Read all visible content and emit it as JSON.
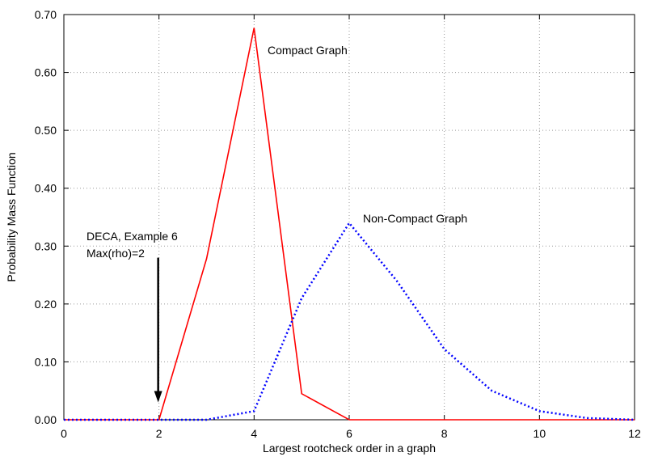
{
  "chart_data": {
    "type": "line",
    "title": "",
    "xlabel": "Largest rootcheck order in a graph",
    "ylabel": "Probability Mass Function",
    "xlim": [
      0,
      12
    ],
    "ylim": [
      0,
      0.7
    ],
    "xticks": [
      0,
      2,
      4,
      6,
      8,
      10,
      12
    ],
    "xtick_labels": [
      "0",
      "2",
      "4",
      "6",
      "8",
      "10",
      "12"
    ],
    "yticks": [
      0,
      0.1,
      0.2,
      0.3,
      0.4,
      0.5,
      0.6,
      0.7
    ],
    "ytick_labels": [
      "0.00",
      "0.10",
      "0.20",
      "0.30",
      "0.40",
      "0.50",
      "0.60",
      "0.70"
    ],
    "grid": true,
    "series": [
      {
        "name": "Compact Graph",
        "color": "#ff0000",
        "style": "solid",
        "x": [
          0,
          1,
          2,
          3,
          4,
          5,
          6,
          7,
          8,
          9,
          10,
          11,
          12
        ],
        "y": [
          0,
          0,
          0,
          0.278,
          0.677,
          0.045,
          0,
          0,
          0,
          0,
          0,
          0,
          0
        ]
      },
      {
        "name": "Non-Compact Graph",
        "color": "#0000ff",
        "style": "dotted",
        "x": [
          0,
          1,
          2,
          3,
          4,
          5,
          6,
          7,
          8,
          9,
          10,
          11,
          12
        ],
        "y": [
          0,
          0,
          0,
          0,
          0.015,
          0.21,
          0.34,
          0.24,
          0.122,
          0.05,
          0.015,
          0.003,
          0
        ]
      }
    ],
    "annotations": [
      {
        "text_lines": [
          "DECA, Example 6",
          "Max(rho)=2"
        ],
        "arrow_x": 2,
        "arrow_from_y": 0.28,
        "arrow_to_y": 0.03
      }
    ]
  }
}
